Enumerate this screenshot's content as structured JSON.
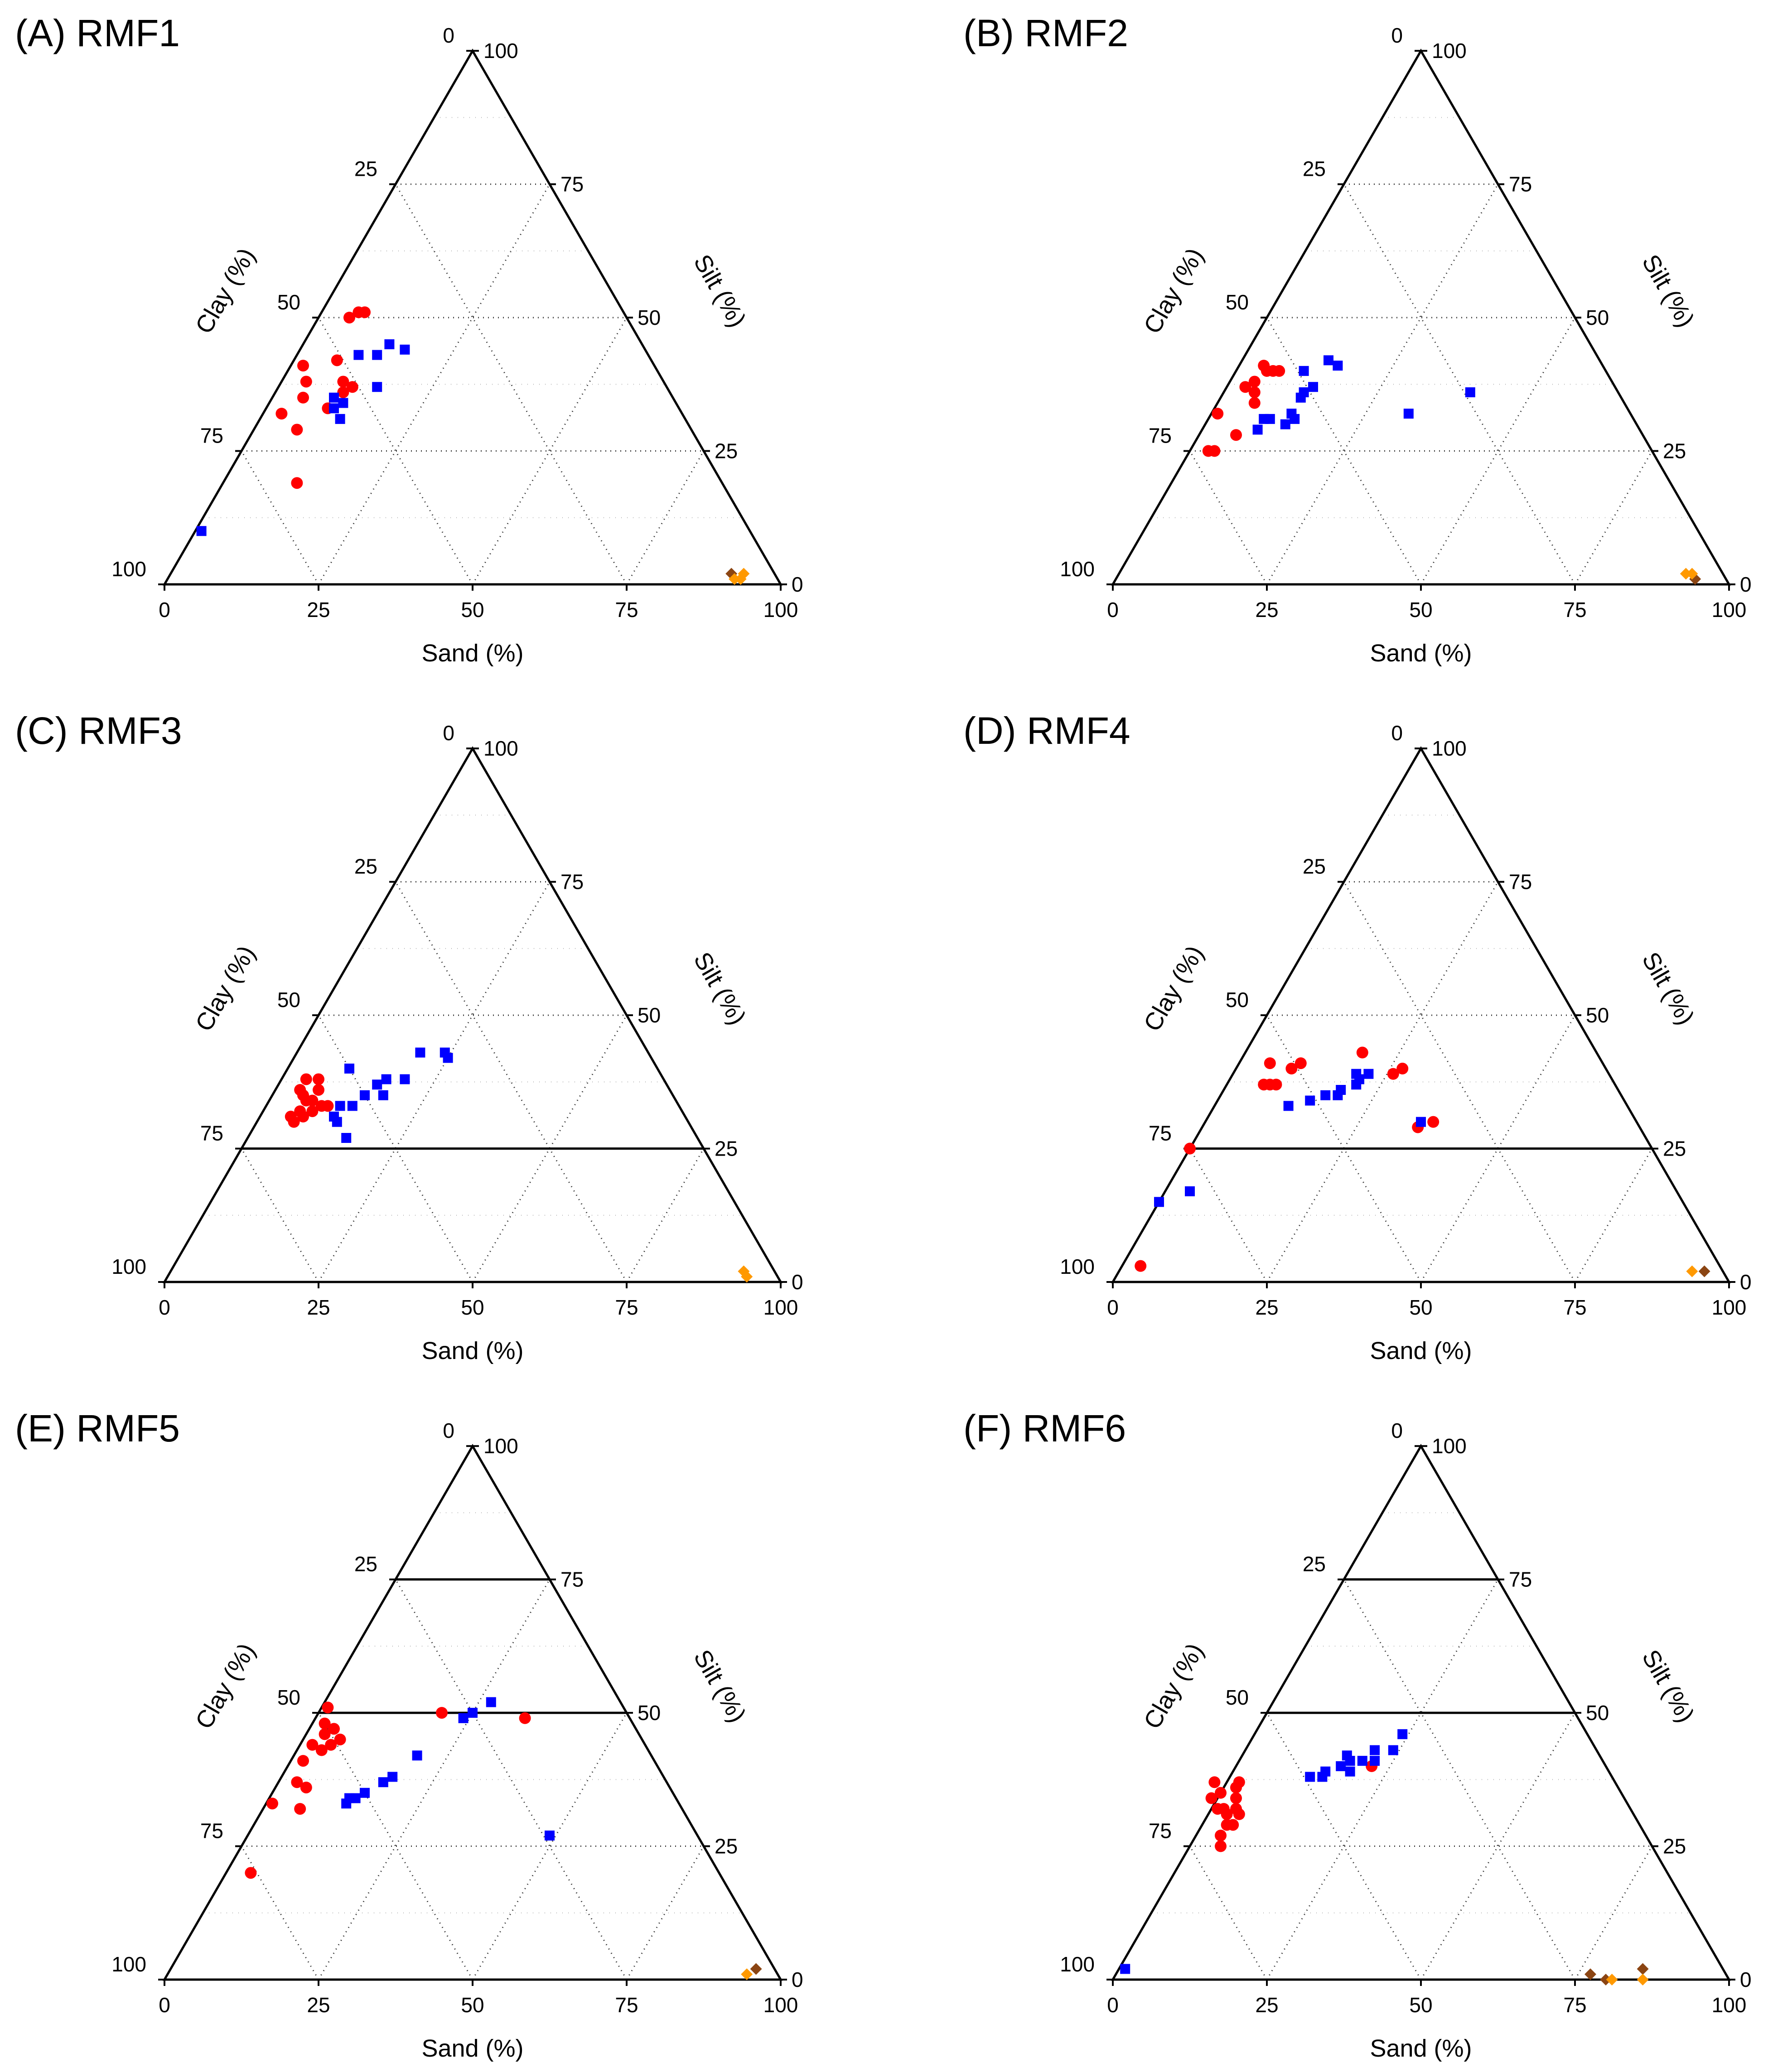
{
  "colors": {
    "red": "#ff0000",
    "blue": "#0000ff",
    "orange": "#ff9900",
    "brown": "#8b4513"
  },
  "chart_data": [
    {
      "type": "scatter",
      "title": "(A) RMF1",
      "sand_label": "Sand (%)",
      "clay_label": "Clay (%)",
      "silt_label": "Silt (%)",
      "ticks": [
        "0",
        "25",
        "50",
        "75",
        "100"
      ],
      "solid_silt_lines": [],
      "series": [
        {
          "color": "red",
          "marker": "circle",
          "points": [
            [
              12,
              19
            ],
            [
              10,
              38
            ],
            [
              7,
              29
            ],
            [
              5,
              35
            ],
            [
              10,
              33
            ],
            [
              11,
              36
            ],
            [
              12,
              37
            ],
            [
              7,
              42
            ],
            [
              2,
              41
            ],
            [
              4,
              38
            ],
            [
              5,
              50
            ],
            [
              6,
              51
            ],
            [
              7,
              51
            ],
            [
              3,
              32
            ]
          ]
        },
        {
          "color": "blue",
          "marker": "square",
          "points": [
            [
              13,
              31
            ],
            [
              11,
              33
            ],
            [
              12,
              34
            ],
            [
              10,
              35
            ],
            [
              10,
              43
            ],
            [
              16,
              37
            ],
            [
              13,
              43
            ],
            [
              14,
              45
            ],
            [
              17,
              44
            ],
            [
              1,
              10
            ]
          ]
        },
        {
          "color": "brown",
          "marker": "diamond",
          "points": [
            [
              91,
              2
            ]
          ]
        },
        {
          "color": "orange",
          "marker": "diamond",
          "points": [
            [
              92,
              1
            ],
            [
              93,
              1
            ],
            [
              93,
              2
            ]
          ]
        }
      ]
    },
    {
      "type": "scatter",
      "title": "(B) RMF2",
      "sand_label": "Sand (%)",
      "clay_label": "Clay (%)",
      "silt_label": "Silt (%)",
      "ticks": [
        "0",
        "25",
        "50",
        "75",
        "100"
      ],
      "solid_silt_lines": [],
      "series": [
        {
          "color": "red",
          "marker": "circle",
          "points": [
            [
              4,
              25
            ],
            [
              3,
              25
            ],
            [
              6,
              28
            ],
            [
              1,
              32
            ],
            [
              6,
              34
            ],
            [
              5,
              36
            ],
            [
              3,
              37
            ],
            [
              4,
              38
            ],
            [
              5,
              40
            ],
            [
              4,
              41
            ],
            [
              6,
              40
            ],
            [
              7,
              40
            ]
          ]
        },
        {
          "color": "blue",
          "marker": "square",
          "points": [
            [
              9,
              29
            ],
            [
              9,
              31
            ],
            [
              10,
              31
            ],
            [
              13,
              30
            ],
            [
              13,
              32
            ],
            [
              14,
              31
            ],
            [
              13,
              35
            ],
            [
              13,
              36
            ],
            [
              14,
              37
            ],
            [
              11,
              40
            ],
            [
              16,
              41
            ],
            [
              14,
              42
            ],
            [
              32,
              32
            ],
            [
              40,
              36
            ]
          ]
        },
        {
          "color": "brown",
          "marker": "diamond",
          "points": [
            [
              94,
              1
            ]
          ]
        },
        {
          "color": "orange",
          "marker": "diamond",
          "points": [
            [
              92,
              2
            ],
            [
              93,
              2
            ]
          ]
        }
      ]
    },
    {
      "type": "scatter",
      "title": "(C) RMF3",
      "sand_label": "Sand (%)",
      "clay_label": "Clay (%)",
      "silt_label": "Silt (%)",
      "ticks": [
        "0",
        "25",
        "50",
        "75",
        "100"
      ],
      "solid_silt_lines": [
        75
      ],
      "series": [
        {
          "color": "red",
          "marker": "circle",
          "points": [
            [
              6,
              30
            ],
            [
              5,
              31
            ],
            [
              6,
              32
            ],
            [
              7,
              31
            ],
            [
              8,
              32
            ],
            [
              9,
              33
            ],
            [
              10,
              33
            ],
            [
              6,
              34
            ],
            [
              5,
              35
            ],
            [
              7,
              34
            ],
            [
              4,
              36
            ],
            [
              4,
              38
            ],
            [
              6,
              38
            ],
            [
              7,
              36
            ]
          ]
        },
        {
          "color": "blue",
          "marker": "square",
          "points": [
            [
              16,
              27
            ],
            [
              12,
              31
            ],
            [
              12,
              33
            ],
            [
              13,
              30
            ],
            [
              14,
              33
            ],
            [
              15,
              35
            ],
            [
              18,
              35
            ],
            [
              16,
              37
            ],
            [
              17,
              38
            ],
            [
              20,
              38
            ],
            [
              10,
              40
            ],
            [
              20,
              43
            ],
            [
              24,
              43
            ],
            [
              25,
              42
            ]
          ]
        },
        {
          "color": "orange",
          "marker": "diamond",
          "points": [
            [
              93,
              2
            ],
            [
              94,
              1
            ]
          ]
        }
      ]
    },
    {
      "type": "scatter",
      "title": "(D) RMF4",
      "sand_label": "Sand (%)",
      "clay_label": "Clay (%)",
      "silt_label": "Silt (%)",
      "ticks": [
        "0",
        "25",
        "50",
        "75",
        "100"
      ],
      "solid_silt_lines": [
        75
      ],
      "series": [
        {
          "color": "red",
          "marker": "circle",
          "points": [
            [
              3,
              3
            ],
            [
              0,
              25
            ],
            [
              6,
              37
            ],
            [
              7,
              37
            ],
            [
              8,
              37
            ],
            [
              9,
              40
            ],
            [
              5,
              41
            ],
            [
              10,
              41
            ],
            [
              19,
              43
            ],
            [
              26,
              39
            ],
            [
              27,
              40
            ],
            [
              35,
              29
            ],
            [
              37,
              30
            ]
          ]
        },
        {
          "color": "blue",
          "marker": "square",
          "points": [
            [
              4,
              17
            ],
            [
              12,
              33
            ],
            [
              15,
              34
            ],
            [
              17,
              35
            ],
            [
              19,
              35
            ],
            [
              19,
              36
            ],
            [
              21,
              37
            ],
            [
              21,
              38
            ],
            [
              22,
              39
            ],
            [
              20,
              39
            ],
            [
              35,
              30
            ],
            [
              0,
              15
            ]
          ]
        },
        {
          "color": "brown",
          "marker": "diamond",
          "points": [
            [
              95,
              2
            ]
          ]
        },
        {
          "color": "orange",
          "marker": "diamond",
          "points": [
            [
              93,
              2
            ]
          ]
        }
      ]
    },
    {
      "type": "scatter",
      "title": "(E) RMF5",
      "sand_label": "Sand (%)",
      "clay_label": "Clay (%)",
      "silt_label": "Silt (%)",
      "ticks": [
        "0",
        "25",
        "50",
        "75",
        "100"
      ],
      "solid_silt_lines": [
        50,
        25
      ],
      "series": [
        {
          "color": "red",
          "marker": "circle",
          "points": [
            [
              4,
              20
            ],
            [
              6,
              32
            ],
            [
              1,
              33
            ],
            [
              5,
              36
            ],
            [
              3,
              37
            ],
            [
              2,
              41
            ],
            [
              4,
              43
            ],
            [
              5,
              44
            ],
            [
              2,
              44
            ],
            [
              6,
              45
            ],
            [
              3,
              46
            ],
            [
              4,
              47
            ],
            [
              2,
              48
            ],
            [
              1,
              51
            ],
            [
              20,
              50
            ],
            [
              34,
              49
            ]
          ]
        },
        {
          "color": "blue",
          "marker": "square",
          "points": [
            [
              13,
              33
            ],
            [
              13,
              34
            ],
            [
              14,
              34
            ],
            [
              15,
              35
            ],
            [
              17,
              37
            ],
            [
              18,
              38
            ],
            [
              20,
              42
            ],
            [
              24,
              49
            ],
            [
              25,
              50
            ],
            [
              27,
              52
            ],
            [
              49,
              27
            ]
          ]
        },
        {
          "color": "brown",
          "marker": "diamond",
          "points": [
            [
              95,
              2
            ]
          ]
        },
        {
          "color": "orange",
          "marker": "diamond",
          "points": [
            [
              94,
              1
            ]
          ]
        }
      ]
    },
    {
      "type": "scatter",
      "title": "(F) RMF6",
      "sand_label": "Sand (%)",
      "clay_label": "Clay (%)",
      "silt_label": "Silt (%)",
      "ticks": [
        "0",
        "25",
        "50",
        "75",
        "100"
      ],
      "solid_silt_lines": [
        50,
        25
      ],
      "series": [
        {
          "color": "red",
          "marker": "circle",
          "points": [
            [
              5,
              25
            ],
            [
              4,
              27
            ],
            [
              4,
              29
            ],
            [
              5,
              29
            ],
            [
              3,
              31
            ],
            [
              4,
              32
            ],
            [
              2,
              32
            ],
            [
              1,
              32
            ],
            [
              3,
              34
            ],
            [
              5,
              31
            ],
            [
              -1,
              34
            ],
            [
              0,
              35
            ],
            [
              2,
              36
            ],
            [
              2,
              37
            ],
            [
              -2,
              37
            ],
            [
              22,
              40
            ]
          ]
        },
        {
          "color": "blue",
          "marker": "square",
          "points": [
            [
              1,
              2
            ],
            [
              13,
              38
            ],
            [
              15,
              38
            ],
            [
              15,
              39
            ],
            [
              17,
              40
            ],
            [
              19,
              39
            ],
            [
              18,
              41
            ],
            [
              20,
              41
            ],
            [
              17,
              42
            ],
            [
              22,
              41
            ],
            [
              21,
              43
            ],
            [
              24,
              43
            ],
            [
              24,
              46
            ]
          ]
        },
        {
          "color": "brown",
          "marker": "diamond",
          "points": [
            [
              77,
              1
            ],
            [
              80,
              0
            ],
            [
              85,
              2
            ]
          ]
        },
        {
          "color": "orange",
          "marker": "diamond",
          "points": [
            [
              81,
              0
            ],
            [
              86,
              0
            ]
          ]
        }
      ]
    }
  ]
}
